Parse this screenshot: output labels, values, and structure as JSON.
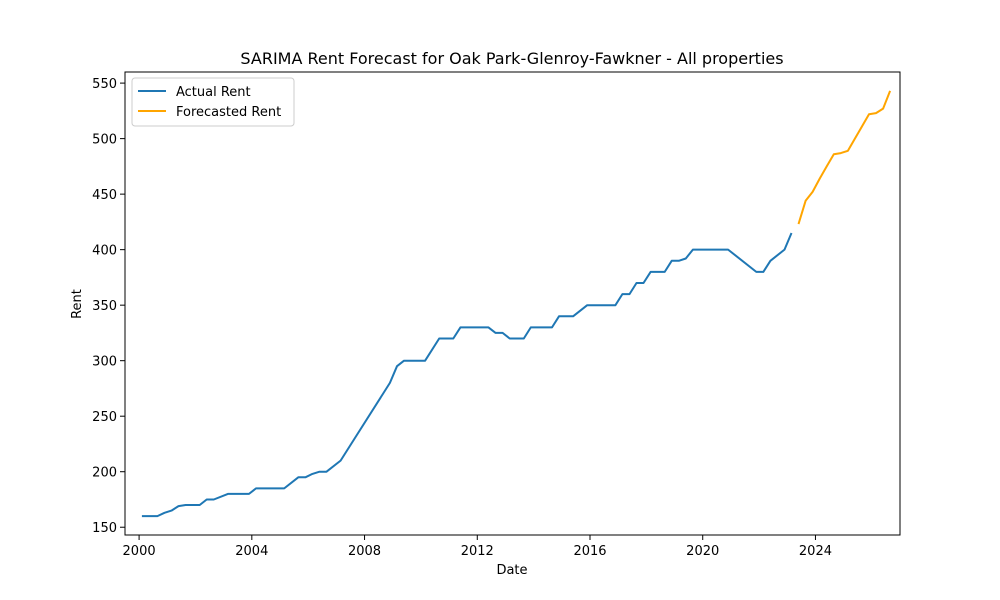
{
  "chart_data": {
    "type": "line",
    "title": "SARIMA Rent Forecast for Oak Park-Glenroy-Fawkner - All properties",
    "xlabel": "Date",
    "ylabel": "Rent",
    "xlim": [
      1999.5,
      2027.0
    ],
    "ylim": [
      143,
      560
    ],
    "x_ticks": [
      2000,
      2004,
      2008,
      2012,
      2016,
      2020,
      2024
    ],
    "x_tick_labels": [
      "2000",
      "2004",
      "2008",
      "2012",
      "2016",
      "2020",
      "2024"
    ],
    "y_ticks": [
      150,
      200,
      250,
      300,
      350,
      400,
      450,
      500,
      550
    ],
    "y_tick_labels": [
      "150",
      "200",
      "250",
      "300",
      "350",
      "400",
      "450",
      "500",
      "550"
    ],
    "grid": false,
    "legend_position": "top-left",
    "series": [
      {
        "name": "Actual Rent",
        "color": "#1f77b4",
        "points": [
          [
            2000.1,
            160
          ],
          [
            2000.65,
            160
          ],
          [
            2000.9,
            163
          ],
          [
            2001.15,
            165
          ],
          [
            2001.4,
            169
          ],
          [
            2001.65,
            170
          ],
          [
            2002.15,
            170
          ],
          [
            2002.4,
            175
          ],
          [
            2002.65,
            175
          ],
          [
            2003.15,
            180
          ],
          [
            2003.9,
            180
          ],
          [
            2004.15,
            185
          ],
          [
            2005.15,
            185
          ],
          [
            2005.65,
            195
          ],
          [
            2005.9,
            195
          ],
          [
            2006.15,
            198
          ],
          [
            2006.4,
            200
          ],
          [
            2006.65,
            200
          ],
          [
            2007.15,
            210
          ],
          [
            2007.65,
            230
          ],
          [
            2008.9,
            280
          ],
          [
            2009.15,
            295
          ],
          [
            2009.4,
            300
          ],
          [
            2010.15,
            300
          ],
          [
            2010.65,
            320
          ],
          [
            2011.15,
            320
          ],
          [
            2011.4,
            330
          ],
          [
            2012.4,
            330
          ],
          [
            2012.65,
            325
          ],
          [
            2012.9,
            325
          ],
          [
            2013.15,
            320
          ],
          [
            2013.65,
            320
          ],
          [
            2013.9,
            330
          ],
          [
            2014.65,
            330
          ],
          [
            2014.9,
            340
          ],
          [
            2015.4,
            340
          ],
          [
            2015.9,
            350
          ],
          [
            2016.9,
            350
          ],
          [
            2017.15,
            360
          ],
          [
            2017.4,
            360
          ],
          [
            2017.65,
            370
          ],
          [
            2017.9,
            370
          ],
          [
            2018.15,
            380
          ],
          [
            2018.65,
            380
          ],
          [
            2018.9,
            390
          ],
          [
            2019.15,
            390
          ],
          [
            2019.4,
            392
          ],
          [
            2019.65,
            400
          ],
          [
            2020.9,
            400
          ],
          [
            2021.9,
            380
          ],
          [
            2022.15,
            380
          ],
          [
            2022.4,
            390
          ],
          [
            2022.9,
            400
          ],
          [
            2023.15,
            415
          ]
        ]
      },
      {
        "name": "Forecasted Rent",
        "color": "#ffa500",
        "points": [
          [
            2023.4,
            423
          ],
          [
            2023.65,
            444
          ],
          [
            2023.9,
            452
          ],
          [
            2024.15,
            464
          ],
          [
            2024.4,
            475
          ],
          [
            2024.65,
            486
          ],
          [
            2024.9,
            487
          ],
          [
            2025.15,
            489
          ],
          [
            2025.4,
            500
          ],
          [
            2025.65,
            511
          ],
          [
            2025.9,
            522
          ],
          [
            2026.15,
            523
          ],
          [
            2026.4,
            527
          ],
          [
            2026.65,
            543
          ]
        ]
      }
    ]
  }
}
